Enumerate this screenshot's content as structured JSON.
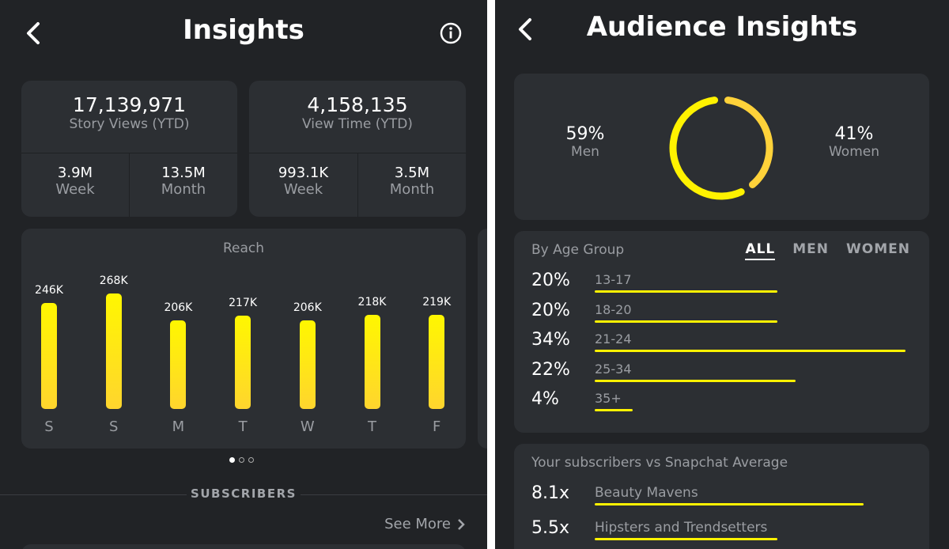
{
  "left": {
    "title": "Insights",
    "back_icon": "chevron-left-icon",
    "info_icon": "info-icon",
    "story": {
      "value": "17,139,971",
      "label": "Story Views (YTD)",
      "week_value": "3.9M",
      "week_label": "Week",
      "month_value": "13.5M",
      "month_label": "Month"
    },
    "viewtime": {
      "value": "4,158,135",
      "label": "View Time (YTD)",
      "week_value": "993.1K",
      "week_label": "Week",
      "month_value": "3.5M",
      "month_label": "Month"
    },
    "pager": {
      "count": 3,
      "active": 0
    },
    "section": "SUBSCRIBERS",
    "see_more": "See More"
  },
  "chart_data": {
    "type": "bar",
    "title": "Reach",
    "categories": [
      "S",
      "S",
      "M",
      "T",
      "W",
      "T",
      "F"
    ],
    "values": [
      246,
      268,
      206,
      217,
      206,
      218,
      219
    ],
    "labels": [
      "246K",
      "268K",
      "206K",
      "217K",
      "206K",
      "218K",
      "219K"
    ],
    "color": "#fff200"
  },
  "right": {
    "title": "Audience Insights",
    "gender": {
      "men_pct": "59%",
      "men_label": "Men",
      "women_pct": "41%",
      "women_label": "Women",
      "men_value": 59,
      "women_value": 41,
      "men_color": "#fff200",
      "women_color": "#ffd23a"
    },
    "age": {
      "heading": "By Age Group",
      "tabs": [
        "ALL",
        "MEN",
        "WOMEN"
      ],
      "active_tab": 0,
      "rows": [
        {
          "pct": "20%",
          "range": "13-17",
          "value": 20
        },
        {
          "pct": "20%",
          "range": "18-20",
          "value": 20
        },
        {
          "pct": "34%",
          "range": "21-24",
          "value": 34
        },
        {
          "pct": "22%",
          "range": "25-34",
          "value": 22
        },
        {
          "pct": "4%",
          "range": "35+",
          "value": 4
        }
      ]
    },
    "compare": {
      "heading": "Your subscribers vs Snapchat Average",
      "rows": [
        {
          "mult": "8.1x",
          "label": "Beauty Mavens",
          "value": 8.1
        },
        {
          "mult": "5.5x",
          "label": "Hipsters and Trendsetters",
          "value": 5.5
        }
      ]
    }
  }
}
